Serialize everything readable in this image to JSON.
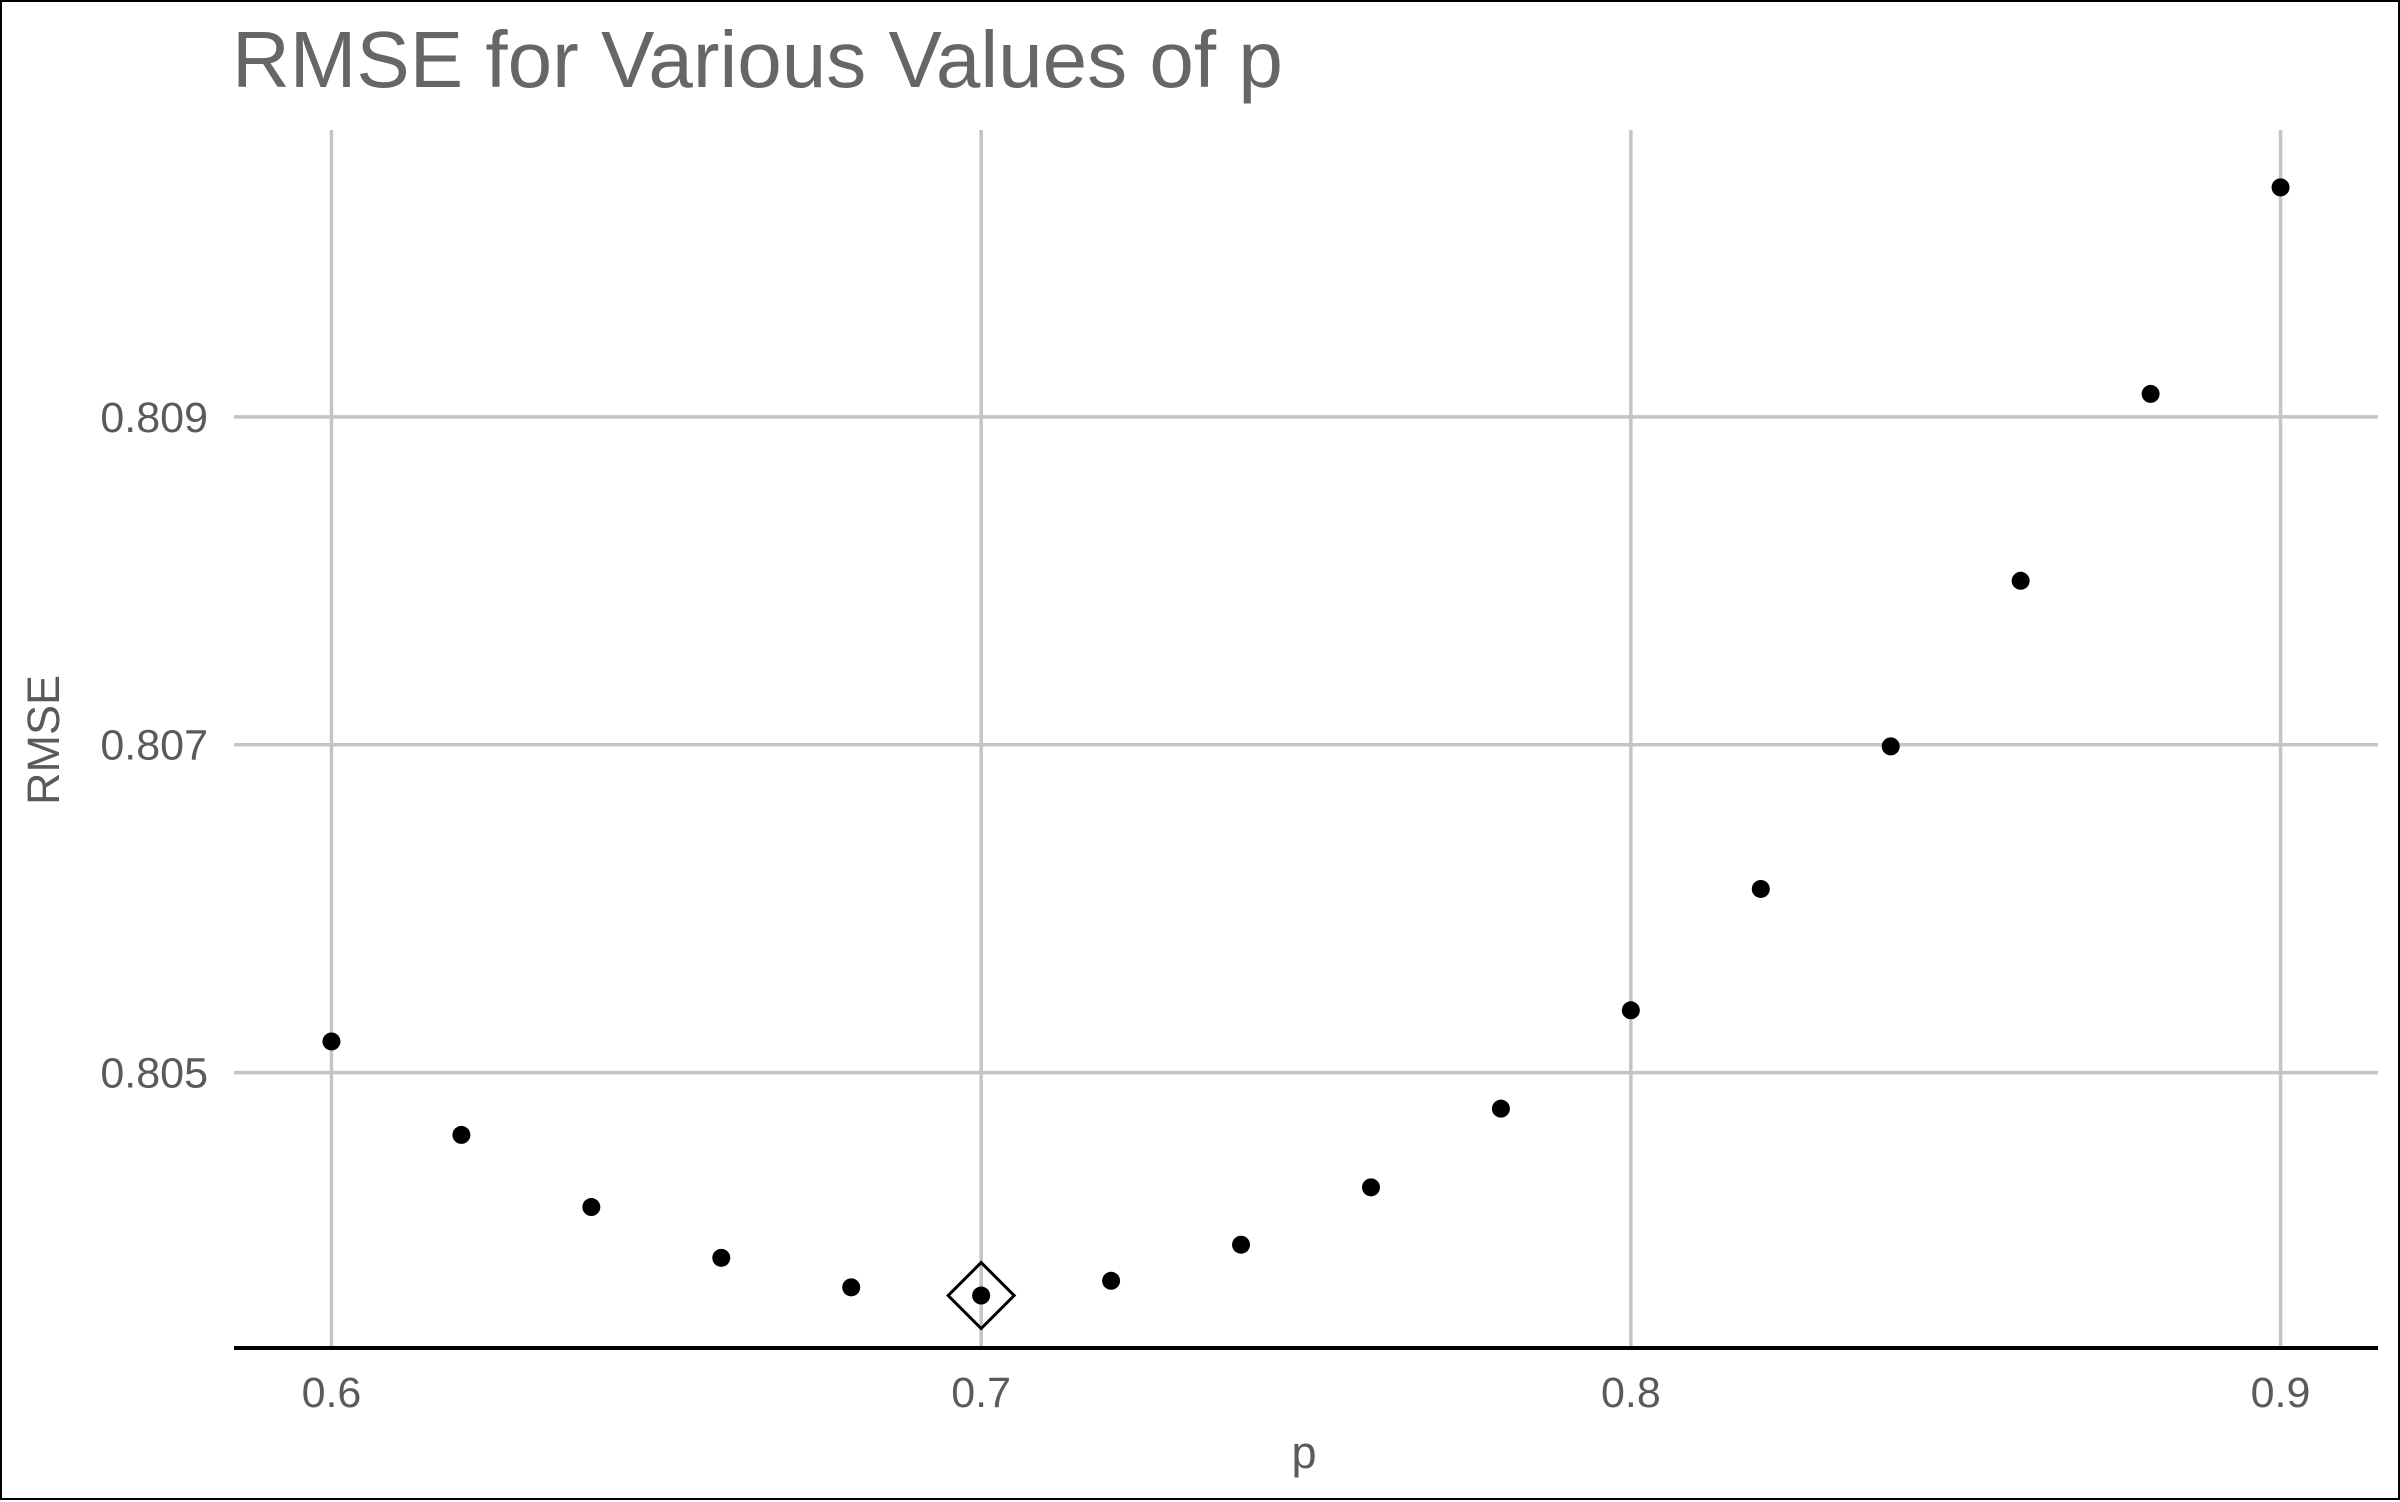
{
  "chart_data": {
    "type": "scatter",
    "title": "RMSE for Various Values of p",
    "xlabel": "p",
    "ylabel": "RMSE",
    "x": [
      0.6,
      0.62,
      0.64,
      0.66,
      0.68,
      0.7,
      0.72,
      0.74,
      0.76,
      0.78,
      0.8,
      0.82,
      0.84,
      0.86,
      0.88,
      0.9
    ],
    "y": [
      0.80519,
      0.80462,
      0.80418,
      0.80387,
      0.80369,
      0.80364,
      0.80373,
      0.80395,
      0.8043,
      0.80478,
      0.80538,
      0.80612,
      0.80699,
      0.808,
      0.80914,
      0.8104
    ],
    "xlim": [
      0.585,
      0.915
    ],
    "ylim": [
      0.80332,
      0.81075
    ],
    "x_ticks": [
      0.6,
      0.7,
      0.8,
      0.9
    ],
    "x_tick_labels": [
      "0.6",
      "0.7",
      "0.8",
      "0.9"
    ],
    "y_ticks": [
      0.805,
      0.807,
      0.809
    ],
    "y_tick_labels": [
      "0.805",
      "0.807",
      "0.809"
    ],
    "grid": true,
    "highlight": {
      "x": 0.7,
      "y": 0.80364,
      "marker": "diamond"
    },
    "colors": {
      "points": "#000000",
      "grid": "#c4c4c4",
      "text": "#5a5a5a",
      "title": "#666666"
    }
  }
}
